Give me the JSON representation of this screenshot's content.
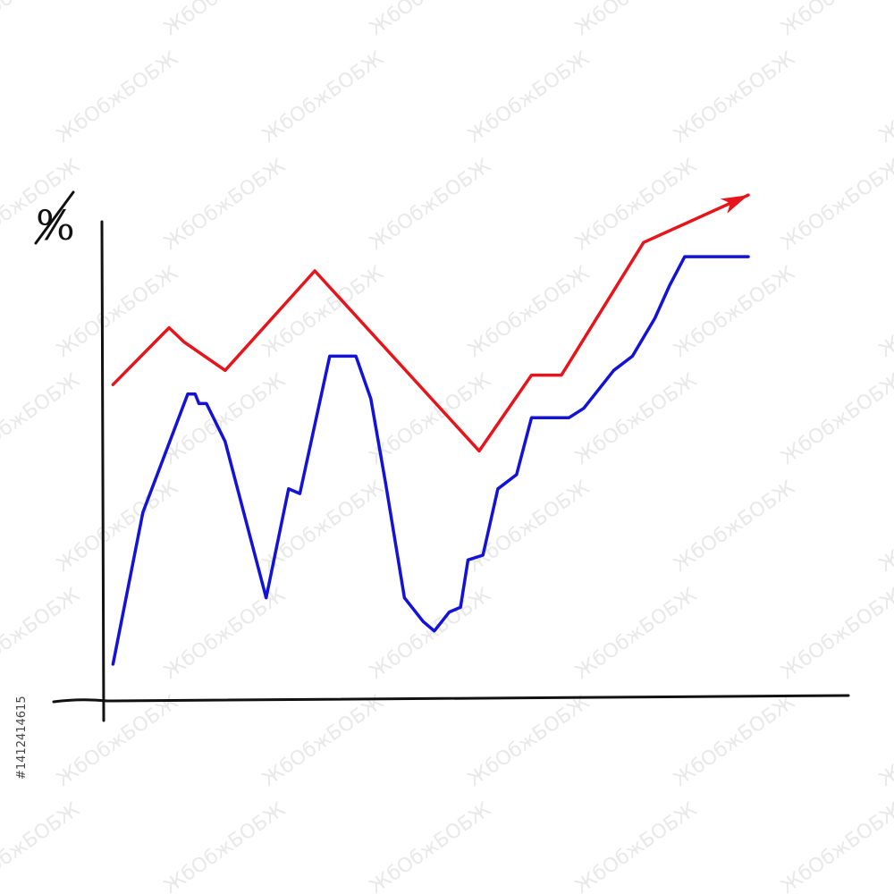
{
  "chart_data": {
    "type": "line",
    "title": "",
    "xlabel": "",
    "ylabel": "%",
    "grid": false,
    "legend": "none",
    "xlim": [
      0,
      100
    ],
    "ylim": [
      0,
      100
    ],
    "series": [
      {
        "color": "#e8141b",
        "arrow_end": true,
        "x": [
          1,
          8.5,
          10.5,
          16,
          28,
          50,
          57,
          61,
          72,
          86
        ],
        "y": [
          66,
          78,
          75,
          69,
          90,
          52,
          68,
          68,
          96,
          106
        ]
      },
      {
        "color": "#1212d8",
        "arrow_end": false,
        "x": [
          1,
          5,
          11,
          12,
          12.5,
          13.5,
          16,
          21.5,
          24.5,
          26,
          30,
          33.5,
          35.5,
          37.5,
          40,
          42.5,
          44,
          45,
          46,
          47.5,
          48.5,
          50.5,
          52.5,
          55,
          57,
          60,
          62,
          64,
          68,
          70.5,
          73.5,
          75.5,
          77.5,
          79,
          81,
          86
        ],
        "y": [
          7,
          39,
          64,
          64,
          62,
          62,
          54,
          21,
          44,
          43,
          72,
          72,
          63,
          45,
          21,
          16,
          14,
          16,
          18,
          19,
          29,
          30,
          44,
          47,
          59,
          59,
          59,
          61,
          69,
          72,
          80,
          87,
          93,
          93,
          93,
          93
        ]
      }
    ]
  },
  "stock_id": "#1412414615",
  "watermark_text": "ЖбОбжБОБЖ"
}
